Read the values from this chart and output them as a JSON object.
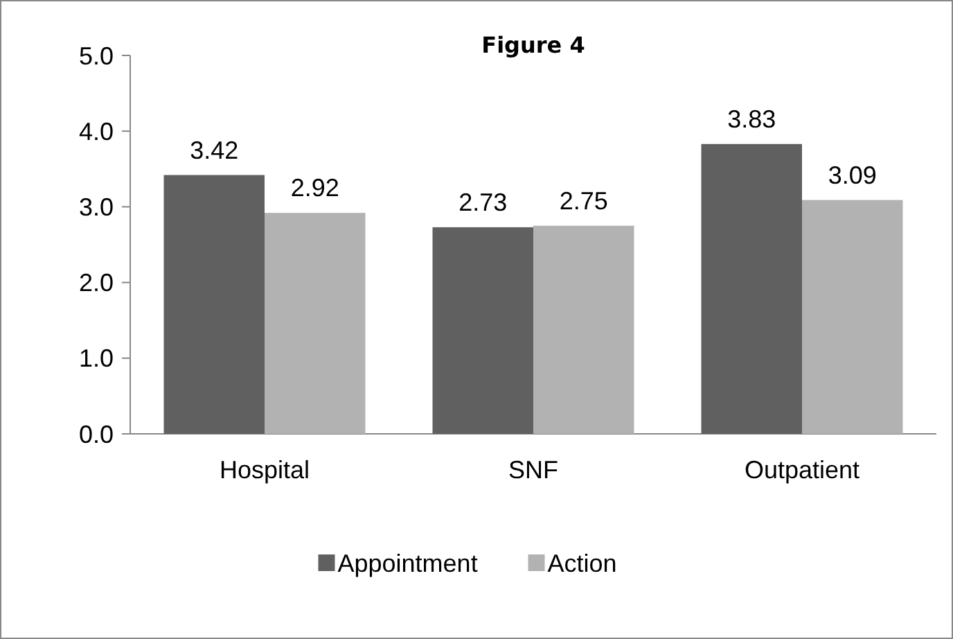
{
  "chart_data": {
    "type": "bar",
    "title": "Figure 4",
    "categories": [
      "Hospital",
      "SNF",
      "Outpatient"
    ],
    "series": [
      {
        "name": "Appointment",
        "color": "#606060",
        "values": [
          3.42,
          2.73,
          3.83
        ]
      },
      {
        "name": "Action",
        "color": "#b2b2b2",
        "values": [
          2.92,
          2.75,
          3.09
        ]
      }
    ],
    "ylim": [
      0,
      5
    ],
    "yticks": [
      {
        "value": 0,
        "label": "0.0"
      },
      {
        "value": 1,
        "label": "1.0"
      },
      {
        "value": 2,
        "label": "2.0"
      },
      {
        "value": 3,
        "label": "3.0"
      },
      {
        "value": 4,
        "label": "4.0"
      },
      {
        "value": 5,
        "label": "5.0"
      }
    ],
    "data_labels": true,
    "legend": "bottom",
    "grid": false
  }
}
